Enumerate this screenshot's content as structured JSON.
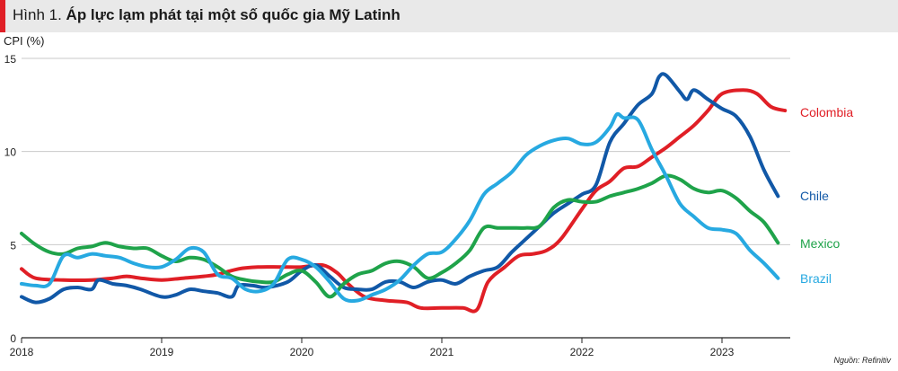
{
  "header": {
    "figure_label": "Hình 1.",
    "title_text": "Áp lực lạm phát tại một số quốc gia Mỹ Latinh"
  },
  "source": "Nguồn: Refinitiv",
  "chart_data": {
    "type": "line",
    "title": "Hình 1. Áp lực lạm phát tại một số quốc gia Mỹ Latinh",
    "ylabel": "CPI (%)",
    "xlabel": "",
    "ylim": [
      0,
      15
    ],
    "xlim": [
      2018.0,
      2023.75
    ],
    "yticks": [
      0,
      5,
      10,
      15
    ],
    "xticks": [
      2018,
      2019,
      2020,
      2021,
      2022,
      2023
    ],
    "grid": "horizontal",
    "legend": "direct labels at right end of lines",
    "series": [
      {
        "name": "Colombia",
        "color": "#e01f26",
        "points": [
          [
            2018.0,
            3.7
          ],
          [
            2018.1,
            3.2
          ],
          [
            2018.3,
            3.1
          ],
          [
            2018.5,
            3.1
          ],
          [
            2018.65,
            3.2
          ],
          [
            2018.75,
            3.3
          ],
          [
            2018.85,
            3.2
          ],
          [
            2019.0,
            3.1
          ],
          [
            2019.15,
            3.2
          ],
          [
            2019.3,
            3.3
          ],
          [
            2019.4,
            3.4
          ],
          [
            2019.55,
            3.7
          ],
          [
            2019.7,
            3.8
          ],
          [
            2019.85,
            3.8
          ],
          [
            2020.0,
            3.8
          ],
          [
            2020.15,
            3.9
          ],
          [
            2020.25,
            3.5
          ],
          [
            2020.33,
            2.9
          ],
          [
            2020.45,
            2.2
          ],
          [
            2020.6,
            2.0
          ],
          [
            2020.75,
            1.9
          ],
          [
            2020.85,
            1.6
          ],
          [
            2021.0,
            1.6
          ],
          [
            2021.15,
            1.6
          ],
          [
            2021.25,
            1.5
          ],
          [
            2021.33,
            3.0
          ],
          [
            2021.45,
            3.8
          ],
          [
            2021.55,
            4.4
          ],
          [
            2021.65,
            4.5
          ],
          [
            2021.75,
            4.7
          ],
          [
            2021.85,
            5.3
          ],
          [
            2022.0,
            6.9
          ],
          [
            2022.1,
            7.9
          ],
          [
            2022.2,
            8.4
          ],
          [
            2022.3,
            9.1
          ],
          [
            2022.4,
            9.2
          ],
          [
            2022.5,
            9.7
          ],
          [
            2022.6,
            10.2
          ],
          [
            2022.7,
            10.8
          ],
          [
            2022.8,
            11.4
          ],
          [
            2022.9,
            12.2
          ],
          [
            2023.0,
            13.1
          ],
          [
            2023.15,
            13.3
          ],
          [
            2023.25,
            13.1
          ],
          [
            2023.35,
            12.4
          ],
          [
            2023.45,
            12.2
          ]
        ]
      },
      {
        "name": "Chile",
        "color": "#1158a7",
        "points": [
          [
            2018.0,
            2.2
          ],
          [
            2018.1,
            1.9
          ],
          [
            2018.2,
            2.1
          ],
          [
            2018.3,
            2.6
          ],
          [
            2018.4,
            2.7
          ],
          [
            2018.5,
            2.6
          ],
          [
            2018.55,
            3.1
          ],
          [
            2018.65,
            2.9
          ],
          [
            2018.75,
            2.8
          ],
          [
            2018.85,
            2.6
          ],
          [
            2019.0,
            2.2
          ],
          [
            2019.1,
            2.3
          ],
          [
            2019.2,
            2.6
          ],
          [
            2019.3,
            2.5
          ],
          [
            2019.4,
            2.4
          ],
          [
            2019.5,
            2.2
          ],
          [
            2019.55,
            2.8
          ],
          [
            2019.65,
            2.8
          ],
          [
            2019.75,
            2.7
          ],
          [
            2019.9,
            3.0
          ],
          [
            2020.0,
            3.6
          ],
          [
            2020.1,
            3.9
          ],
          [
            2020.2,
            3.3
          ],
          [
            2020.3,
            2.7
          ],
          [
            2020.4,
            2.6
          ],
          [
            2020.5,
            2.6
          ],
          [
            2020.6,
            3.0
          ],
          [
            2020.7,
            3.0
          ],
          [
            2020.8,
            2.7
          ],
          [
            2020.9,
            3.0
          ],
          [
            2021.0,
            3.1
          ],
          [
            2021.1,
            2.9
          ],
          [
            2021.2,
            3.3
          ],
          [
            2021.3,
            3.6
          ],
          [
            2021.4,
            3.8
          ],
          [
            2021.5,
            4.6
          ],
          [
            2021.6,
            5.3
          ],
          [
            2021.7,
            6.0
          ],
          [
            2021.8,
            6.7
          ],
          [
            2021.9,
            7.2
          ],
          [
            2022.0,
            7.7
          ],
          [
            2022.1,
            8.2
          ],
          [
            2022.2,
            10.5
          ],
          [
            2022.3,
            11.5
          ],
          [
            2022.4,
            12.5
          ],
          [
            2022.5,
            13.1
          ],
          [
            2022.55,
            14.0
          ],
          [
            2022.6,
            14.1
          ],
          [
            2022.7,
            13.2
          ],
          [
            2022.75,
            12.8
          ],
          [
            2022.8,
            13.3
          ],
          [
            2022.9,
            12.8
          ],
          [
            2023.0,
            12.3
          ],
          [
            2023.1,
            11.9
          ],
          [
            2023.2,
            10.8
          ],
          [
            2023.3,
            9.0
          ],
          [
            2023.4,
            7.6
          ]
        ]
      },
      {
        "name": "Mexico",
        "color": "#1fa34a",
        "points": [
          [
            2018.0,
            5.6
          ],
          [
            2018.1,
            5.0
          ],
          [
            2018.2,
            4.6
          ],
          [
            2018.3,
            4.5
          ],
          [
            2018.4,
            4.8
          ],
          [
            2018.5,
            4.9
          ],
          [
            2018.6,
            5.1
          ],
          [
            2018.7,
            4.9
          ],
          [
            2018.8,
            4.8
          ],
          [
            2018.9,
            4.8
          ],
          [
            2019.0,
            4.4
          ],
          [
            2019.1,
            4.1
          ],
          [
            2019.2,
            4.3
          ],
          [
            2019.3,
            4.2
          ],
          [
            2019.4,
            3.8
          ],
          [
            2019.5,
            3.3
          ],
          [
            2019.6,
            3.1
          ],
          [
            2019.7,
            3.0
          ],
          [
            2019.8,
            3.0
          ],
          [
            2019.9,
            3.4
          ],
          [
            2020.0,
            3.6
          ],
          [
            2020.1,
            3.0
          ],
          [
            2020.2,
            2.2
          ],
          [
            2020.3,
            2.9
          ],
          [
            2020.4,
            3.4
          ],
          [
            2020.5,
            3.6
          ],
          [
            2020.6,
            4.0
          ],
          [
            2020.7,
            4.1
          ],
          [
            2020.8,
            3.8
          ],
          [
            2020.9,
            3.2
          ],
          [
            2021.0,
            3.5
          ],
          [
            2021.1,
            4.0
          ],
          [
            2021.2,
            4.7
          ],
          [
            2021.3,
            5.9
          ],
          [
            2021.4,
            5.9
          ],
          [
            2021.5,
            5.9
          ],
          [
            2021.6,
            5.9
          ],
          [
            2021.7,
            6.0
          ],
          [
            2021.8,
            7.0
          ],
          [
            2021.9,
            7.4
          ],
          [
            2022.0,
            7.3
          ],
          [
            2022.1,
            7.3
          ],
          [
            2022.2,
            7.6
          ],
          [
            2022.3,
            7.8
          ],
          [
            2022.4,
            8.0
          ],
          [
            2022.5,
            8.3
          ],
          [
            2022.6,
            8.7
          ],
          [
            2022.7,
            8.5
          ],
          [
            2022.8,
            8.0
          ],
          [
            2022.9,
            7.8
          ],
          [
            2023.0,
            7.9
          ],
          [
            2023.1,
            7.5
          ],
          [
            2023.2,
            6.8
          ],
          [
            2023.3,
            6.2
          ],
          [
            2023.4,
            5.1
          ]
        ]
      },
      {
        "name": "Brazil",
        "color": "#27a9e1",
        "points": [
          [
            2018.0,
            2.9
          ],
          [
            2018.1,
            2.8
          ],
          [
            2018.2,
            2.9
          ],
          [
            2018.3,
            4.4
          ],
          [
            2018.4,
            4.3
          ],
          [
            2018.5,
            4.5
          ],
          [
            2018.6,
            4.4
          ],
          [
            2018.7,
            4.3
          ],
          [
            2018.8,
            4.0
          ],
          [
            2018.9,
            3.8
          ],
          [
            2019.0,
            3.8
          ],
          [
            2019.1,
            4.2
          ],
          [
            2019.2,
            4.8
          ],
          [
            2019.3,
            4.6
          ],
          [
            2019.4,
            3.4
          ],
          [
            2019.5,
            3.2
          ],
          [
            2019.6,
            2.6
          ],
          [
            2019.7,
            2.5
          ],
          [
            2019.8,
            2.9
          ],
          [
            2019.9,
            4.2
          ],
          [
            2020.0,
            4.2
          ],
          [
            2020.1,
            3.8
          ],
          [
            2020.2,
            3.0
          ],
          [
            2020.3,
            2.1
          ],
          [
            2020.4,
            2.0
          ],
          [
            2020.5,
            2.3
          ],
          [
            2020.6,
            2.6
          ],
          [
            2020.7,
            3.1
          ],
          [
            2020.8,
            3.9
          ],
          [
            2020.9,
            4.5
          ],
          [
            2021.0,
            4.6
          ],
          [
            2021.1,
            5.3
          ],
          [
            2021.2,
            6.3
          ],
          [
            2021.3,
            7.7
          ],
          [
            2021.4,
            8.3
          ],
          [
            2021.5,
            8.9
          ],
          [
            2021.6,
            9.8
          ],
          [
            2021.7,
            10.3
          ],
          [
            2021.8,
            10.6
          ],
          [
            2021.9,
            10.7
          ],
          [
            2022.0,
            10.4
          ],
          [
            2022.1,
            10.5
          ],
          [
            2022.2,
            11.3
          ],
          [
            2022.25,
            12.0
          ],
          [
            2022.3,
            11.8
          ],
          [
            2022.4,
            11.7
          ],
          [
            2022.5,
            10.1
          ],
          [
            2022.6,
            8.7
          ],
          [
            2022.7,
            7.2
          ],
          [
            2022.8,
            6.5
          ],
          [
            2022.9,
            5.9
          ],
          [
            2023.0,
            5.8
          ],
          [
            2023.1,
            5.6
          ],
          [
            2023.2,
            4.7
          ],
          [
            2023.3,
            4.0
          ],
          [
            2023.4,
            3.2
          ]
        ]
      }
    ]
  }
}
